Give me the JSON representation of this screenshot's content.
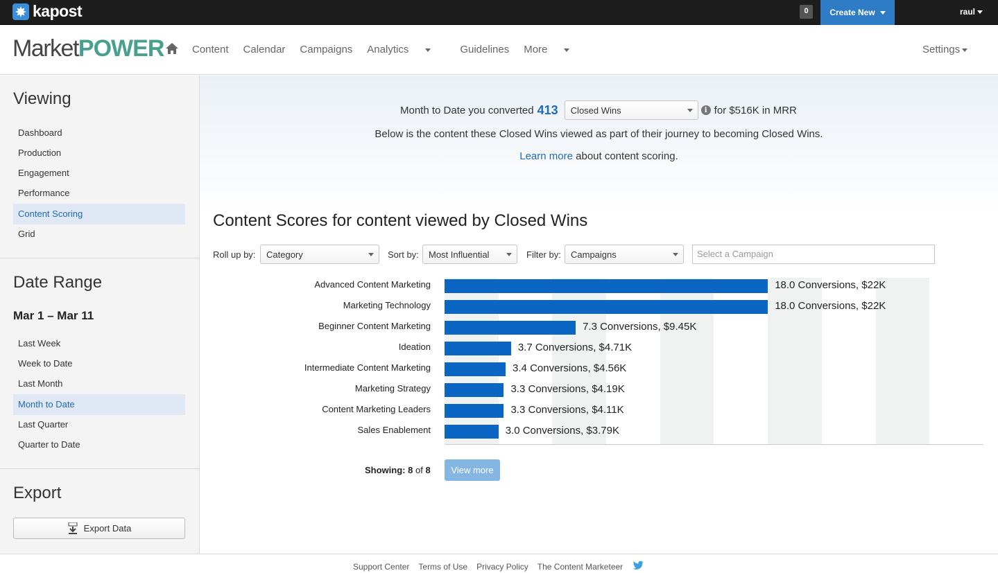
{
  "topbar": {
    "logo_text": "kapost",
    "notifications_count": "0",
    "create_new_label": "Create New",
    "user_label": "raul"
  },
  "navbar": {
    "brand_market": "Market",
    "brand_power": "POWER",
    "items": [
      "Content",
      "Calendar",
      "Campaigns",
      "Analytics",
      "Guidelines",
      "More"
    ],
    "settings_label": "Settings"
  },
  "sidebar": {
    "viewing_heading": "Viewing",
    "viewing_items": [
      "Dashboard",
      "Production",
      "Engagement",
      "Performance",
      "Content Scoring",
      "Grid"
    ],
    "viewing_active": "Content Scoring",
    "date_range_heading": "Date Range",
    "date_range_value": "Mar 1 – Mar 11",
    "date_items": [
      "Last Week",
      "Week to Date",
      "Last Month",
      "Month to Date",
      "Last Quarter",
      "Quarter to Date"
    ],
    "date_active": "Month to Date",
    "export_heading": "Export",
    "export_button_label": "Export Data"
  },
  "summary": {
    "prefix": "Month to Date you converted",
    "count": "413",
    "stage_select": "Closed Wins",
    "suffix": "for $516K in MRR",
    "line2": "Below is the content these Closed Wins viewed as part of their journey to becoming Closed Wins.",
    "learn_more": "Learn more",
    "line3_suffix": " about content scoring."
  },
  "section_title": "Content Scores for content viewed by Closed Wins",
  "filters": {
    "rollup_label": "Roll up by:",
    "rollup_value": "Category",
    "sort_label": "Sort by:",
    "sort_value": "Most Influential",
    "filter_label": "Filter by:",
    "filter_value": "Campaigns",
    "campaign_placeholder": "Select a Campaign"
  },
  "chart_data": {
    "type": "bar",
    "orientation": "horizontal",
    "categories": [
      "Advanced Content Marketing",
      "Marketing Technology",
      "Beginner Content Marketing",
      "Ideation",
      "Intermediate Content Marketing",
      "Marketing Strategy",
      "Content Marketing Leaders",
      "Sales Enablement"
    ],
    "values": [
      18.0,
      18.0,
      7.3,
      3.7,
      3.4,
      3.3,
      3.3,
      3.0
    ],
    "labels": [
      "18.0 Conversions, $22K",
      "18.0 Conversions, $22K",
      "7.3 Conversions, $9.45K",
      "3.7 Conversions, $4.71K",
      "3.4 Conversions, $4.56K",
      "3.3 Conversions, $4.19K",
      "3.3 Conversions, $4.11K",
      "3.0 Conversions, $3.79K"
    ],
    "xlim": [
      0,
      30
    ],
    "bar_color": "#0a66c2"
  },
  "pagination": {
    "showing_label": "Showing:",
    "showing_count": "8",
    "of_label": "of",
    "total": "8",
    "view_more_label": "View more"
  },
  "footer": {
    "links": [
      "Support Center",
      "Terms of Use",
      "Privacy Policy",
      "The Content Marketeer"
    ]
  }
}
